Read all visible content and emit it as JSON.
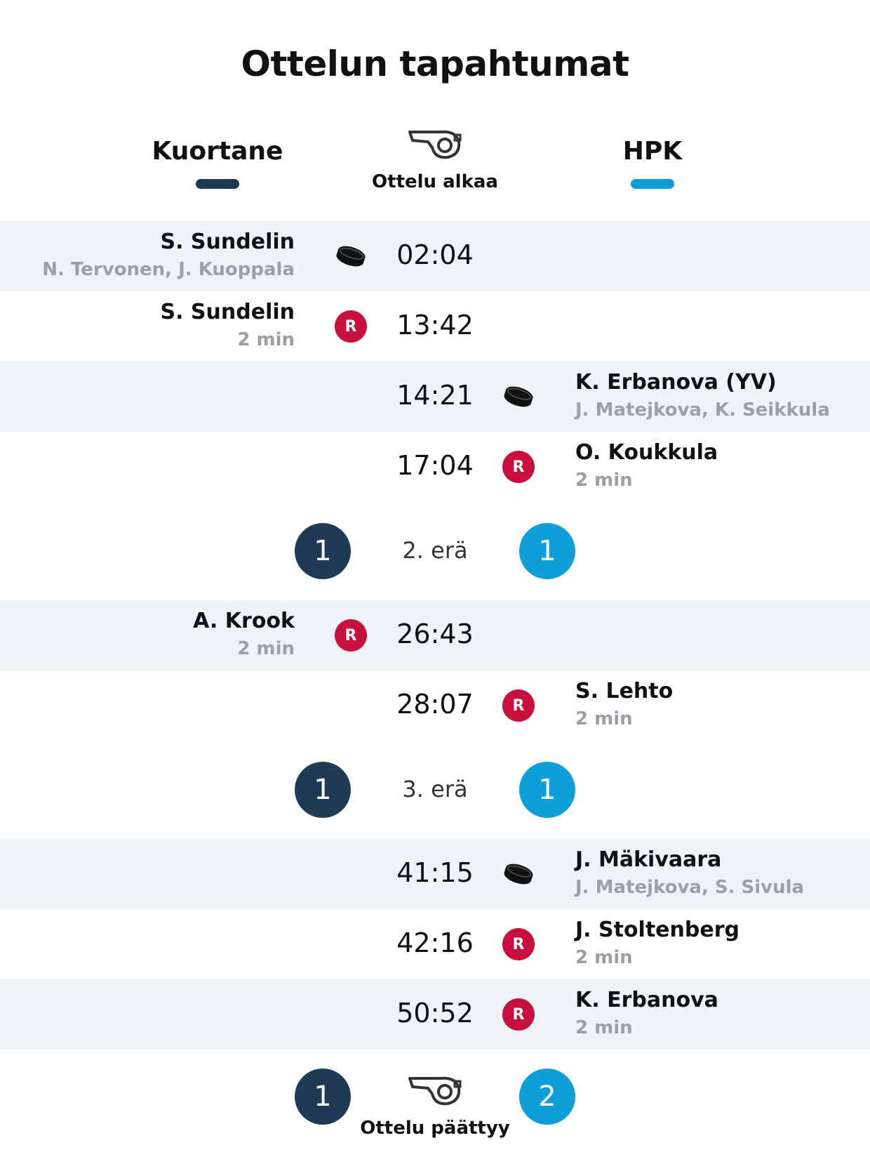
{
  "page": {
    "title": "Ottelun tapahtumat"
  },
  "teams": {
    "home": {
      "name": "Kuortane",
      "color": "#1f3a55"
    },
    "away": {
      "name": "HPK",
      "color": "#0f9fd8"
    }
  },
  "start": {
    "label": "Ottelu alkaa",
    "icon": "whistle-icon"
  },
  "end": {
    "label": "Ottelu päättyy",
    "icon": "whistle-icon",
    "home_score": "1",
    "away_score": "2"
  },
  "events": [
    {
      "side": "home",
      "type": "goal",
      "time": "02:04",
      "player": "S. Sundelin",
      "detail": "N. Tervonen, J. Kuoppala",
      "shaded": true
    },
    {
      "side": "home",
      "type": "penalty",
      "time": "13:42",
      "player": "S. Sundelin",
      "detail": "2 min",
      "shaded": false
    },
    {
      "side": "away",
      "type": "goal",
      "time": "14:21",
      "player": "K. Erbanova (YV)",
      "detail": "J. Matejkova, K. Seikkula",
      "shaded": true
    },
    {
      "side": "away",
      "type": "penalty",
      "time": "17:04",
      "player": "O. Koukkula",
      "detail": "2 min",
      "shaded": false
    },
    {
      "side": "home",
      "type": "penalty",
      "time": "26:43",
      "player": "A. Krook",
      "detail": "2 min",
      "shaded": true
    },
    {
      "side": "away",
      "type": "penalty",
      "time": "28:07",
      "player": "S. Lehto",
      "detail": "2 min",
      "shaded": false
    },
    {
      "side": "away",
      "type": "goal",
      "time": "41:15",
      "player": "J. Mäkivaara",
      "detail": "J. Matejkova, S. Sivula",
      "shaded": true
    },
    {
      "side": "away",
      "type": "penalty",
      "time": "42:16",
      "player": "J. Stoltenberg",
      "detail": "2 min",
      "shaded": false
    },
    {
      "side": "away",
      "type": "penalty",
      "time": "50:52",
      "player": "K. Erbanova",
      "detail": "2 min",
      "shaded": true
    }
  ],
  "periods": [
    {
      "label": "2. erä",
      "home_score": "1",
      "away_score": "1"
    },
    {
      "label": "3. erä",
      "home_score": "1",
      "away_score": "1"
    }
  ],
  "penalty_badge_text": "R"
}
